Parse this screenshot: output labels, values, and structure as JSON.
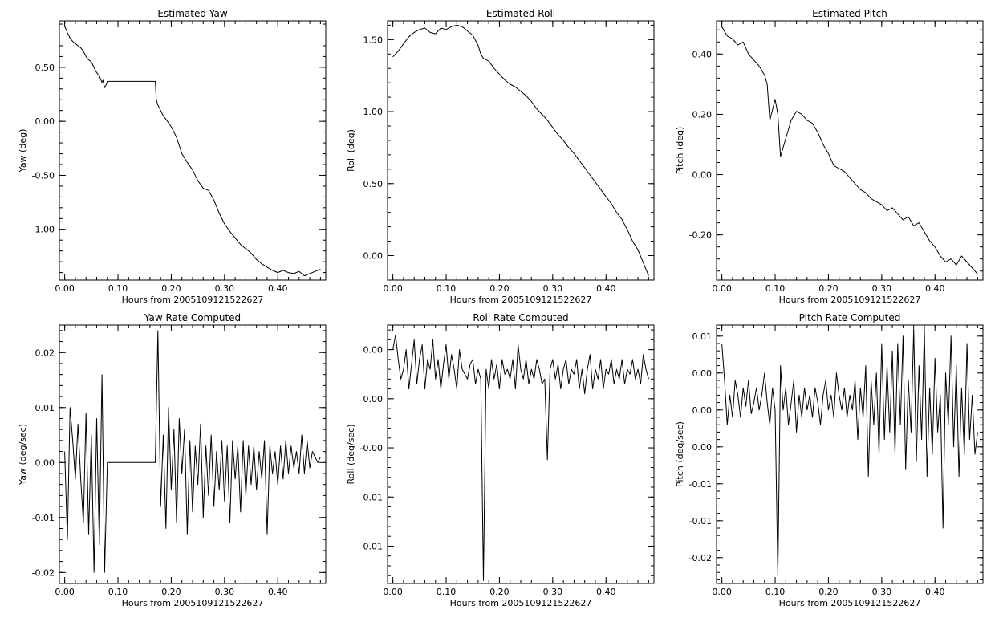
{
  "figure": {
    "background": "#ffffff",
    "line_color": "#000000"
  },
  "chart_data": [
    {
      "type": "line",
      "title": "Estimated Yaw",
      "xlabel": "Hours from 2005109121522627",
      "ylabel": "Yaw (deg)",
      "xlim": [
        -0.01,
        0.49
      ],
      "ylim": [
        -1.47,
        0.93
      ],
      "xticks": [
        0.0,
        0.1,
        0.2,
        0.3,
        0.4
      ],
      "xtick_labels": [
        "0.00",
        "0.10",
        "0.20",
        "0.30",
        "0.40"
      ],
      "yticks": [
        0.5,
        0.0,
        -0.5,
        -1.0
      ],
      "ytick_labels": [
        "0.50",
        "0.00",
        "-0.50",
        "-1.00"
      ],
      "x": [
        0.0,
        0.005,
        0.01,
        0.015,
        0.02,
        0.025,
        0.03,
        0.035,
        0.04,
        0.045,
        0.05,
        0.055,
        0.06,
        0.065,
        0.07,
        0.072,
        0.075,
        0.077,
        0.08,
        0.17,
        0.172,
        0.175,
        0.18,
        0.185,
        0.19,
        0.2,
        0.21,
        0.22,
        0.23,
        0.24,
        0.25,
        0.26,
        0.27,
        0.28,
        0.29,
        0.3,
        0.31,
        0.32,
        0.33,
        0.34,
        0.35,
        0.36,
        0.37,
        0.38,
        0.39,
        0.4,
        0.41,
        0.42,
        0.43,
        0.44,
        0.45,
        0.46,
        0.47,
        0.48
      ],
      "y": [
        0.88,
        0.82,
        0.77,
        0.74,
        0.72,
        0.7,
        0.68,
        0.65,
        0.6,
        0.57,
        0.55,
        0.5,
        0.45,
        0.42,
        0.36,
        0.38,
        0.31,
        0.33,
        0.37,
        0.37,
        0.2,
        0.15,
        0.1,
        0.05,
        0.02,
        -0.05,
        -0.15,
        -0.3,
        -0.38,
        -0.45,
        -0.55,
        -0.62,
        -0.64,
        -0.73,
        -0.85,
        -0.95,
        -1.02,
        -1.08,
        -1.14,
        -1.18,
        -1.22,
        -1.28,
        -1.32,
        -1.35,
        -1.38,
        -1.4,
        -1.38,
        -1.4,
        -1.41,
        -1.39,
        -1.43,
        -1.41,
        -1.39,
        -1.37
      ]
    },
    {
      "type": "line",
      "title": "Estimated Roll",
      "xlabel": "Hours from 2005109121522627",
      "ylabel": "Roll (deg)",
      "xlim": [
        -0.01,
        0.49
      ],
      "ylim": [
        -0.17,
        1.63
      ],
      "xticks": [
        0.0,
        0.1,
        0.2,
        0.3,
        0.4
      ],
      "xtick_labels": [
        "0.00",
        "0.10",
        "0.20",
        "0.30",
        "0.40"
      ],
      "yticks": [
        1.5,
        1.0,
        0.5,
        0.0
      ],
      "ytick_labels": [
        "1.50",
        "1.00",
        "0.50",
        "0.00"
      ],
      "x": [
        0.0,
        0.01,
        0.02,
        0.03,
        0.04,
        0.05,
        0.06,
        0.07,
        0.08,
        0.09,
        0.1,
        0.11,
        0.12,
        0.13,
        0.14,
        0.15,
        0.16,
        0.165,
        0.17,
        0.18,
        0.19,
        0.2,
        0.21,
        0.22,
        0.23,
        0.24,
        0.25,
        0.26,
        0.27,
        0.28,
        0.29,
        0.3,
        0.31,
        0.32,
        0.33,
        0.34,
        0.35,
        0.36,
        0.37,
        0.38,
        0.39,
        0.4,
        0.41,
        0.42,
        0.43,
        0.44,
        0.45,
        0.46,
        0.47,
        0.48
      ],
      "y": [
        1.38,
        1.42,
        1.47,
        1.52,
        1.55,
        1.57,
        1.58,
        1.55,
        1.54,
        1.58,
        1.57,
        1.59,
        1.6,
        1.59,
        1.56,
        1.53,
        1.46,
        1.4,
        1.37,
        1.35,
        1.3,
        1.26,
        1.22,
        1.19,
        1.17,
        1.14,
        1.11,
        1.07,
        1.02,
        0.98,
        0.94,
        0.89,
        0.84,
        0.8,
        0.75,
        0.71,
        0.66,
        0.61,
        0.56,
        0.51,
        0.46,
        0.41,
        0.36,
        0.3,
        0.25,
        0.18,
        0.1,
        0.04,
        -0.05,
        -0.14
      ]
    },
    {
      "type": "line",
      "title": "Estimated Pitch",
      "xlabel": "Hours from 2005109121522627",
      "ylabel": "Pitch (deg)",
      "xlim": [
        -0.01,
        0.49
      ],
      "ylim": [
        -0.35,
        0.51
      ],
      "xticks": [
        0.0,
        0.1,
        0.2,
        0.3,
        0.4
      ],
      "xtick_labels": [
        "0.00",
        "0.10",
        "0.20",
        "0.30",
        "0.40"
      ],
      "yticks": [
        0.4,
        0.2,
        0.0,
        -0.2
      ],
      "ytick_labels": [
        "0.40",
        "0.20",
        "0.00",
        "-0.20"
      ],
      "x": [
        0.0,
        0.01,
        0.02,
        0.03,
        0.04,
        0.05,
        0.06,
        0.07,
        0.08,
        0.085,
        0.09,
        0.1,
        0.105,
        0.11,
        0.12,
        0.13,
        0.14,
        0.15,
        0.16,
        0.17,
        0.18,
        0.19,
        0.2,
        0.21,
        0.22,
        0.23,
        0.24,
        0.25,
        0.26,
        0.27,
        0.28,
        0.29,
        0.3,
        0.31,
        0.32,
        0.33,
        0.34,
        0.35,
        0.36,
        0.37,
        0.38,
        0.39,
        0.4,
        0.41,
        0.42,
        0.43,
        0.44,
        0.45,
        0.46,
        0.47,
        0.48
      ],
      "y": [
        0.49,
        0.46,
        0.45,
        0.43,
        0.44,
        0.4,
        0.38,
        0.36,
        0.33,
        0.3,
        0.18,
        0.25,
        0.2,
        0.06,
        0.12,
        0.18,
        0.21,
        0.2,
        0.18,
        0.17,
        0.14,
        0.1,
        0.07,
        0.03,
        0.02,
        0.01,
        -0.01,
        -0.03,
        -0.05,
        -0.06,
        -0.08,
        -0.09,
        -0.1,
        -0.12,
        -0.11,
        -0.13,
        -0.15,
        -0.14,
        -0.17,
        -0.16,
        -0.19,
        -0.22,
        -0.24,
        -0.27,
        -0.29,
        -0.28,
        -0.3,
        -0.27,
        -0.29,
        -0.31,
        -0.33
      ]
    },
    {
      "type": "line",
      "title": "Yaw Rate Computed",
      "xlabel": "Hours from 2005109121522627",
      "ylabel": "Yaw (deg/sec)",
      "xlim": [
        -0.01,
        0.49
      ],
      "ylim": [
        -0.022,
        0.025
      ],
      "xticks": [
        0.0,
        0.1,
        0.2,
        0.3,
        0.4
      ],
      "xtick_labels": [
        "0.00",
        "0.10",
        "0.20",
        "0.30",
        "0.40"
      ],
      "yticks": [
        0.02,
        0.01,
        0.0,
        -0.01,
        -0.02
      ],
      "ytick_labels": [
        "0.02",
        "0.01",
        "0.00",
        "-0.01",
        "-0.02"
      ],
      "x": [
        0.0,
        0.005,
        0.01,
        0.015,
        0.02,
        0.025,
        0.03,
        0.035,
        0.04,
        0.045,
        0.05,
        0.055,
        0.06,
        0.065,
        0.07,
        0.075,
        0.08,
        0.17,
        0.175,
        0.18,
        0.185,
        0.19,
        0.195,
        0.2,
        0.205,
        0.21,
        0.215,
        0.22,
        0.225,
        0.23,
        0.235,
        0.24,
        0.245,
        0.25,
        0.255,
        0.26,
        0.265,
        0.27,
        0.275,
        0.28,
        0.285,
        0.29,
        0.295,
        0.3,
        0.305,
        0.31,
        0.315,
        0.32,
        0.325,
        0.33,
        0.335,
        0.34,
        0.345,
        0.35,
        0.355,
        0.36,
        0.365,
        0.37,
        0.375,
        0.38,
        0.385,
        0.39,
        0.395,
        0.4,
        0.405,
        0.41,
        0.415,
        0.42,
        0.425,
        0.43,
        0.435,
        0.44,
        0.445,
        0.45,
        0.455,
        0.46,
        0.465,
        0.47,
        0.475,
        0.48
      ],
      "y": [
        0.002,
        -0.014,
        0.01,
        0.004,
        -0.003,
        0.007,
        -0.003,
        -0.011,
        0.009,
        -0.013,
        0.005,
        -0.02,
        0.008,
        -0.015,
        0.016,
        -0.02,
        0.0,
        0.0,
        0.024,
        -0.008,
        0.005,
        -0.012,
        0.01,
        -0.005,
        0.006,
        -0.011,
        0.008,
        -0.002,
        0.006,
        -0.013,
        0.004,
        -0.009,
        0.003,
        -0.004,
        0.007,
        -0.01,
        0.003,
        -0.006,
        0.005,
        -0.008,
        0.002,
        -0.005,
        0.004,
        -0.007,
        0.003,
        -0.011,
        0.004,
        -0.003,
        0.003,
        -0.009,
        0.004,
        -0.006,
        0.003,
        -0.004,
        0.003,
        -0.005,
        0.002,
        -0.003,
        0.004,
        -0.013,
        0.003,
        -0.002,
        0.002,
        -0.004,
        0.003,
        -0.003,
        0.004,
        -0.002,
        0.003,
        -0.001,
        0.002,
        -0.002,
        0.005,
        -0.002,
        0.004,
        -0.001,
        0.002,
        0.001,
        0.0,
        0.001
      ]
    },
    {
      "type": "line",
      "title": "Roll Rate Computed",
      "xlabel": "Hours from 2005109121522627",
      "ylabel": "Roll (deg/sec)",
      "xlim": [
        -0.01,
        0.49
      ],
      "ylim": [
        -0.0188,
        0.0075
      ],
      "xticks": [
        0.0,
        0.1,
        0.2,
        0.3,
        0.4
      ],
      "xtick_labels": [
        "0.00",
        "0.10",
        "0.20",
        "0.30",
        "0.40"
      ],
      "yticks": [
        0.005,
        0.0,
        -0.005,
        -0.01,
        -0.015
      ],
      "ytick_labels": [
        "0.00",
        "0.00",
        "-0.00",
        "-0.01",
        "-0.01"
      ],
      "x": [
        0.0,
        0.005,
        0.01,
        0.015,
        0.02,
        0.025,
        0.03,
        0.035,
        0.04,
        0.045,
        0.05,
        0.055,
        0.06,
        0.065,
        0.07,
        0.075,
        0.08,
        0.085,
        0.09,
        0.095,
        0.1,
        0.105,
        0.11,
        0.115,
        0.12,
        0.125,
        0.13,
        0.135,
        0.14,
        0.145,
        0.15,
        0.155,
        0.16,
        0.165,
        0.17,
        0.175,
        0.18,
        0.185,
        0.19,
        0.195,
        0.2,
        0.205,
        0.21,
        0.215,
        0.22,
        0.225,
        0.23,
        0.235,
        0.24,
        0.245,
        0.25,
        0.255,
        0.26,
        0.265,
        0.27,
        0.275,
        0.28,
        0.285,
        0.29,
        0.295,
        0.3,
        0.305,
        0.31,
        0.315,
        0.32,
        0.325,
        0.33,
        0.335,
        0.34,
        0.345,
        0.35,
        0.355,
        0.36,
        0.365,
        0.37,
        0.375,
        0.38,
        0.385,
        0.39,
        0.395,
        0.4,
        0.405,
        0.41,
        0.415,
        0.42,
        0.425,
        0.43,
        0.435,
        0.44,
        0.445,
        0.45,
        0.455,
        0.46,
        0.465,
        0.47,
        0.475,
        0.48
      ],
      "y": [
        0.005,
        0.0065,
        0.004,
        0.002,
        0.003,
        0.005,
        0.001,
        0.0035,
        0.006,
        0.0015,
        0.004,
        0.0055,
        0.001,
        0.004,
        0.003,
        0.006,
        0.002,
        0.004,
        0.001,
        0.0035,
        0.0055,
        0.002,
        0.0045,
        0.003,
        0.001,
        0.005,
        0.003,
        0.0025,
        0.002,
        0.0035,
        0.004,
        0.0015,
        0.003,
        0.002,
        -0.0185,
        0.003,
        0.001,
        0.004,
        0.002,
        0.0035,
        0.001,
        0.004,
        0.0025,
        0.003,
        0.002,
        0.004,
        0.001,
        0.0055,
        0.003,
        0.002,
        0.004,
        0.0015,
        0.003,
        0.002,
        0.004,
        0.003,
        0.0015,
        0.002,
        -0.0062,
        0.003,
        0.004,
        0.002,
        0.0035,
        0.001,
        0.003,
        0.004,
        0.0015,
        0.003,
        0.0025,
        0.004,
        0.001,
        0.003,
        0.0005,
        0.003,
        0.0045,
        0.001,
        0.003,
        0.002,
        0.004,
        0.001,
        0.003,
        0.0025,
        0.004,
        0.0015,
        0.003,
        0.002,
        0.004,
        0.0015,
        0.003,
        0.0025,
        0.004,
        0.002,
        0.003,
        0.0015,
        0.0045,
        0.003,
        0.002
      ]
    },
    {
      "type": "line",
      "title": "Pitch Rate Computed",
      "xlabel": "Hours from 2005109121522627",
      "ylabel": "Pitch (deg/sec)",
      "xlim": [
        -0.01,
        0.49
      ],
      "ylim": [
        -0.0235,
        0.0115
      ],
      "xticks": [
        0.0,
        0.1,
        0.2,
        0.3,
        0.4
      ],
      "xtick_labels": [
        "0.00",
        "0.10",
        "0.20",
        "0.30",
        "0.40"
      ],
      "yticks": [
        0.01,
        0.005,
        0.0,
        -0.005,
        -0.01,
        -0.015,
        -0.02
      ],
      "ytick_labels": [
        "0.01",
        "0.00",
        "0.00",
        "0.00",
        "-0.01",
        "-0.01",
        "-0.02"
      ],
      "x": [
        0.0,
        0.005,
        0.01,
        0.015,
        0.02,
        0.025,
        0.03,
        0.035,
        0.04,
        0.045,
        0.05,
        0.055,
        0.06,
        0.065,
        0.07,
        0.075,
        0.08,
        0.085,
        0.09,
        0.095,
        0.1,
        0.105,
        0.11,
        0.115,
        0.12,
        0.125,
        0.13,
        0.135,
        0.14,
        0.145,
        0.15,
        0.155,
        0.16,
        0.165,
        0.17,
        0.175,
        0.18,
        0.185,
        0.19,
        0.195,
        0.2,
        0.205,
        0.21,
        0.215,
        0.22,
        0.225,
        0.23,
        0.235,
        0.24,
        0.245,
        0.25,
        0.255,
        0.26,
        0.265,
        0.27,
        0.275,
        0.28,
        0.285,
        0.29,
        0.295,
        0.3,
        0.305,
        0.31,
        0.315,
        0.32,
        0.325,
        0.33,
        0.335,
        0.34,
        0.345,
        0.35,
        0.355,
        0.36,
        0.365,
        0.37,
        0.375,
        0.38,
        0.385,
        0.39,
        0.395,
        0.4,
        0.405,
        0.41,
        0.415,
        0.42,
        0.425,
        0.43,
        0.435,
        0.44,
        0.445,
        0.45,
        0.455,
        0.46,
        0.465,
        0.47,
        0.475,
        0.48
      ],
      "y": [
        0.009,
        0.004,
        -0.002,
        0.002,
        -0.001,
        0.004,
        0.002,
        -0.001,
        0.003,
        0.0005,
        0.004,
        -0.0005,
        0.001,
        0.003,
        0.0,
        0.002,
        0.005,
        0.001,
        -0.002,
        0.003,
        0.0,
        -0.0225,
        0.006,
        0.0,
        0.003,
        -0.002,
        0.001,
        0.004,
        -0.003,
        0.002,
        -0.001,
        0.003,
        0.0,
        0.002,
        -0.001,
        0.003,
        0.001,
        -0.002,
        0.002,
        0.004,
        0.0,
        0.002,
        -0.001,
        0.005,
        0.002,
        0.0,
        0.003,
        -0.001,
        0.002,
        0.0,
        0.004,
        -0.004,
        0.003,
        -0.001,
        0.006,
        -0.009,
        0.004,
        -0.002,
        0.005,
        -0.006,
        0.009,
        -0.004,
        0.006,
        -0.003,
        0.008,
        -0.006,
        0.009,
        -0.002,
        0.01,
        -0.008,
        0.004,
        -0.003,
        0.011,
        -0.007,
        0.006,
        -0.004,
        0.011,
        -0.009,
        0.003,
        -0.006,
        0.007,
        -0.003,
        0.002,
        -0.016,
        0.005,
        -0.002,
        0.01,
        -0.005,
        0.006,
        -0.009,
        0.003,
        -0.006,
        0.009,
        -0.004,
        0.002,
        -0.006,
        -0.003
      ]
    }
  ]
}
